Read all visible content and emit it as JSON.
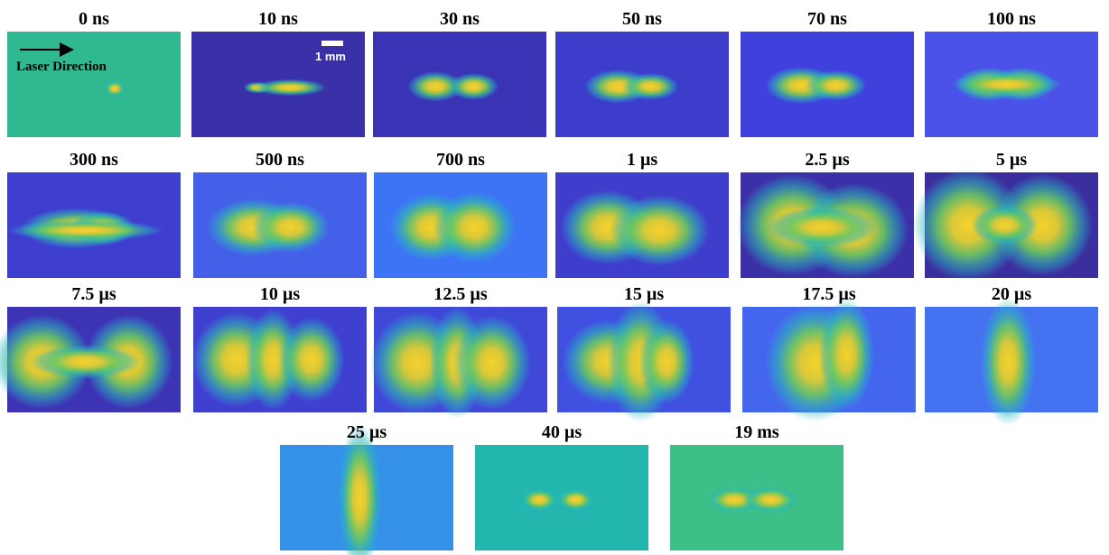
{
  "panels": [
    {
      "label": "0 ns"
    },
    {
      "label": "10 ns"
    },
    {
      "label": "30 ns"
    },
    {
      "label": "50 ns"
    },
    {
      "label": "70 ns"
    },
    {
      "label": "100 ns"
    },
    {
      "label": "300 ns"
    },
    {
      "label": "500 ns"
    },
    {
      "label": "700 ns"
    },
    {
      "label": "1 µs"
    },
    {
      "label": "2.5 µs"
    },
    {
      "label": "5 µs"
    },
    {
      "label": "7.5 µs"
    },
    {
      "label": "10 µs"
    },
    {
      "label": "12.5 µs"
    },
    {
      "label": "15 µs"
    },
    {
      "label": "17.5 µs"
    },
    {
      "label": "20 µs"
    },
    {
      "label": "25 µs"
    },
    {
      "label": "40 µs"
    },
    {
      "label": "19 ms"
    }
  ],
  "annotations": {
    "direction": "Laser Direction",
    "scale": "1 mm"
  }
}
